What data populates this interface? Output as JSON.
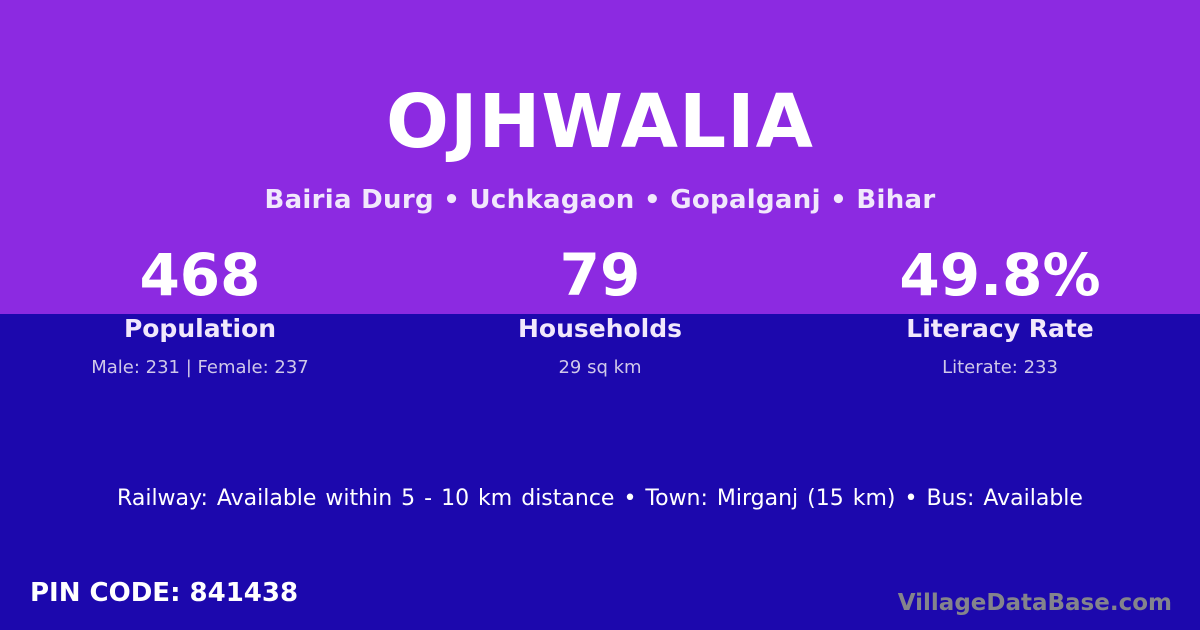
{
  "colors": {
    "top_background": "#8c2ae1",
    "bottom_background": "#1c08ad",
    "text_primary": "#ffffff",
    "text_soft": "#f1e8fc",
    "text_muted": "#cfc8e9",
    "watermark_color": "#84848c"
  },
  "header": {
    "title": "OJHWALIA",
    "subtitle": "Bairia Durg • Uchkagaon • Gopalganj • Bihar"
  },
  "stats": [
    {
      "value": "468",
      "label": "Population",
      "sub": "Male: 231 | Female: 237"
    },
    {
      "value": "79",
      "label": "Households",
      "sub": "29 sq km"
    },
    {
      "value": "49.8%",
      "label": "Literacy Rate",
      "sub": "Literate: 233"
    }
  ],
  "transport": {
    "text": "Railway: Available within 5 - 10 km distance  •  Town: Mirganj (15 km)  •  Bus: Available"
  },
  "footer": {
    "pin_label": "PIN CODE: 841438",
    "watermark": "VillageDataBase.com"
  }
}
